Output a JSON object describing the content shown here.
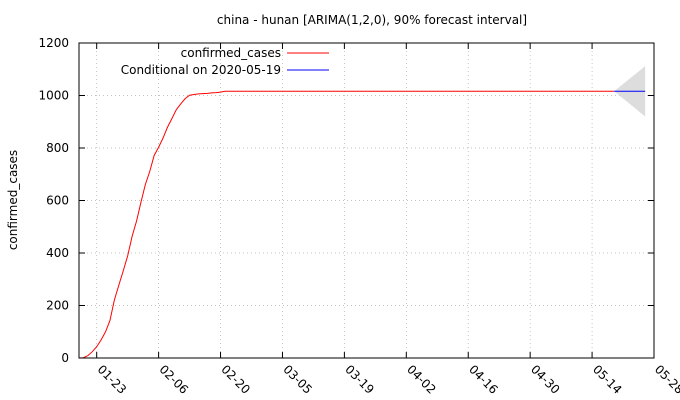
{
  "chart_data": {
    "type": "line",
    "title": "china - hunan [ARIMA(1,2,0), 90% forecast interval]",
    "xlabel": "",
    "ylabel": "confirmed_cases",
    "x_ticks": [
      "01-23",
      "02-06",
      "02-20",
      "03-05",
      "03-19",
      "04-02",
      "04-16",
      "04-30",
      "05-14",
      "05-28"
    ],
    "y_ticks": [
      "0",
      "200",
      "400",
      "600",
      "800",
      "1000",
      "1200"
    ],
    "xlim": [
      "2020-01-19",
      "2020-05-28"
    ],
    "ylim": [
      0,
      1200
    ],
    "grid": true,
    "legend_position": "top-left",
    "series": [
      {
        "name": "confirmed_cases",
        "color": "#ff0000",
        "x": [
          "2020-01-19",
          "2020-01-20",
          "2020-01-21",
          "2020-01-22",
          "2020-01-23",
          "2020-01-24",
          "2020-01-25",
          "2020-01-26",
          "2020-01-27",
          "2020-01-28",
          "2020-01-29",
          "2020-01-30",
          "2020-01-31",
          "2020-02-01",
          "2020-02-02",
          "2020-02-03",
          "2020-02-04",
          "2020-02-05",
          "2020-02-06",
          "2020-02-07",
          "2020-02-08",
          "2020-02-09",
          "2020-02-10",
          "2020-02-11",
          "2020-02-12",
          "2020-02-13",
          "2020-02-14",
          "2020-02-15",
          "2020-02-16",
          "2020-02-17",
          "2020-02-18",
          "2020-02-19",
          "2020-02-20",
          "2020-02-21",
          "2020-02-22",
          "2020-02-23",
          "2020-02-24",
          "2020-02-25",
          "2020-02-26",
          "2020-03-01",
          "2020-03-15",
          "2020-04-01",
          "2020-04-15",
          "2020-05-01",
          "2020-05-19"
        ],
        "values": [
          0,
          1,
          9,
          24,
          43,
          69,
          100,
          143,
          221,
          277,
          332,
          389,
          463,
          521,
          593,
          661,
          711,
          772,
          803,
          838,
          879,
          912,
          946,
          968,
          988,
          1001,
          1004,
          1006,
          1007,
          1008,
          1010,
          1011,
          1013,
          1016,
          1016,
          1016,
          1016,
          1016,
          1016,
          1016,
          1016,
          1016,
          1016,
          1016,
          1016
        ]
      },
      {
        "name": "Conditional on 2020-05-19",
        "color": "#0000ff",
        "x": [
          "2020-05-19",
          "2020-05-26"
        ],
        "values": [
          1016,
          1016
        ],
        "interval_label": "90% forecast interval",
        "interval_color": "#dddddd",
        "lower": [
          1016,
          920
        ],
        "upper": [
          1016,
          1112
        ]
      }
    ]
  }
}
